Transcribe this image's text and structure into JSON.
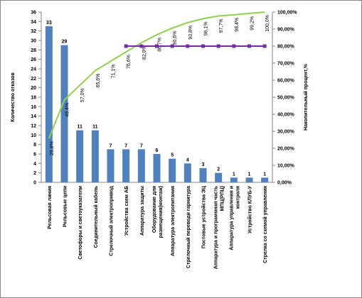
{
  "chart_data": {
    "type": "bar",
    "categories": [
      "Рельсовая линия",
      "Рельсовые цепи",
      "Светофоры и светоуказатели",
      "Соединительный кабель",
      "Стрелочный электропривод",
      "Устройства схем АБ",
      "Аппаратура защиты",
      "Оборудование для\nразмещения(монтаж)",
      "Аппаратура электропитания",
      "Стрелочный переводи гарнитура",
      "Постовые устройства ЭЦ",
      "Аппаратура и программная часть\nМПЦ(РПЦ)",
      "Аппаратура управления и\nконтроля",
      "Устройство КЛУБ-У",
      "Стрелка со схемой управления"
    ],
    "values": [
      33,
      29,
      11,
      11,
      7,
      7,
      7,
      6,
      5,
      4,
      3,
      2,
      1,
      1,
      1
    ],
    "color": "#4f81bd",
    "ylabel": "Количество отказов",
    "y2label": "Накопительный процент,%",
    "ylim": [
      0,
      36
    ],
    "yticks": [
      0,
      2,
      4,
      6,
      8,
      10,
      12,
      14,
      16,
      18,
      20,
      22,
      24,
      26,
      28,
      30,
      32,
      34,
      36
    ],
    "y2lim": [
      0,
      100
    ],
    "y2ticks": [
      {
        "value": 0,
        "label": "0,00%"
      },
      {
        "value": 10,
        "label": "10,00%"
      },
      {
        "value": 20,
        "label": "20,00%"
      },
      {
        "value": 30,
        "label": "30,00%"
      },
      {
        "value": 40,
        "label": "40,00%"
      },
      {
        "value": 50,
        "label": "50,00%"
      },
      {
        "value": 60,
        "label": "60,00%"
      },
      {
        "value": 70,
        "label": "70,00%"
      },
      {
        "value": 80,
        "label": "80,00%"
      },
      {
        "value": 90,
        "label": "90,00%"
      },
      {
        "value": 100,
        "label": "100,00%"
      }
    ],
    "series": [
      {
        "type": "line",
        "axis": "y2",
        "color": "#92d050",
        "values": [
          25.8,
          48.4,
          57.0,
          65.6,
          71.1,
          76.6,
          82.0,
          86.7,
          90.6,
          93.8,
          96.1,
          97.7,
          98.4,
          99.2,
          100.0
        ],
        "value_labels": [
          "25,8%",
          "48,4%",
          "57,0%",
          "65,6%",
          "71,1%",
          "76,6%",
          "82,0%",
          "86,7%",
          "90,6%",
          "93,8%",
          "96,1%",
          "97,7%",
          "98,4%",
          "99,2%",
          "100,0%"
        ]
      },
      {
        "type": "line",
        "axis": "y2",
        "color": "#7030a0",
        "markers": true,
        "values": [
          null,
          null,
          null,
          null,
          null,
          80,
          80,
          80,
          80,
          80,
          80,
          80,
          80,
          80,
          80
        ]
      }
    ]
  }
}
